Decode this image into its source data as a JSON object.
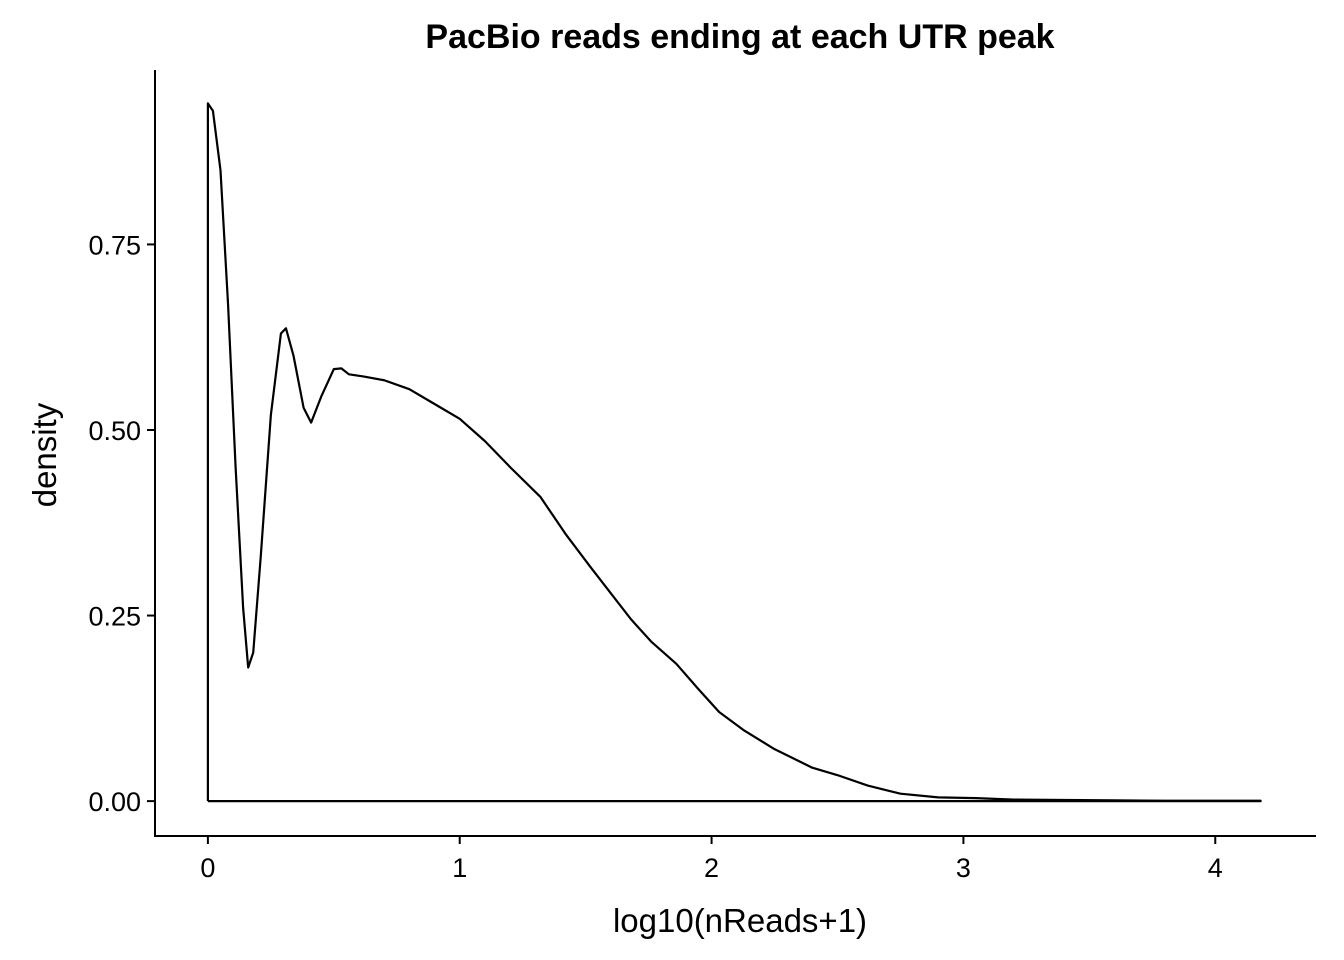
{
  "chart_data": {
    "type": "line",
    "title": "PacBio reads ending at each UTR peak",
    "xlabel": "log10(nReads+1)",
    "ylabel": "density",
    "xlim": [
      -0.21,
      4.4
    ],
    "ylim": [
      -0.047,
      0.985
    ],
    "x_ticks": [
      {
        "value": 0,
        "label": "0"
      },
      {
        "value": 1,
        "label": "1"
      },
      {
        "value": 2,
        "label": "2"
      },
      {
        "value": 3,
        "label": "3"
      },
      {
        "value": 4,
        "label": "4"
      }
    ],
    "y_ticks": [
      {
        "value": 0.0,
        "label": "0.00"
      },
      {
        "value": 0.25,
        "label": "0.25"
      },
      {
        "value": 0.5,
        "label": "0.50"
      },
      {
        "value": 0.75,
        "label": "0.75"
      }
    ],
    "grid": false,
    "legend": "none",
    "series": [
      {
        "style": "density-outline",
        "color": "#000000",
        "points": [
          [
            0.0,
            0.0
          ],
          [
            0.0,
            0.94
          ],
          [
            0.02,
            0.93
          ],
          [
            0.05,
            0.85
          ],
          [
            0.08,
            0.67
          ],
          [
            0.11,
            0.45
          ],
          [
            0.14,
            0.26
          ],
          [
            0.16,
            0.18
          ],
          [
            0.18,
            0.2
          ],
          [
            0.21,
            0.33
          ],
          [
            0.25,
            0.52
          ],
          [
            0.29,
            0.63
          ],
          [
            0.31,
            0.637
          ],
          [
            0.34,
            0.6
          ],
          [
            0.38,
            0.53
          ],
          [
            0.41,
            0.51
          ],
          [
            0.45,
            0.545
          ],
          [
            0.5,
            0.582
          ],
          [
            0.53,
            0.583
          ],
          [
            0.56,
            0.575
          ],
          [
            0.62,
            0.572
          ],
          [
            0.7,
            0.567
          ],
          [
            0.8,
            0.555
          ],
          [
            0.9,
            0.535
          ],
          [
            1.0,
            0.515
          ],
          [
            1.1,
            0.485
          ],
          [
            1.2,
            0.45
          ],
          [
            1.32,
            0.41
          ],
          [
            1.42,
            0.36
          ],
          [
            1.52,
            0.315
          ],
          [
            1.6,
            0.28
          ],
          [
            1.68,
            0.245
          ],
          [
            1.76,
            0.215
          ],
          [
            1.86,
            0.185
          ],
          [
            1.95,
            0.15
          ],
          [
            2.03,
            0.12
          ],
          [
            2.13,
            0.095
          ],
          [
            2.25,
            0.07
          ],
          [
            2.4,
            0.045
          ],
          [
            2.5,
            0.035
          ],
          [
            2.62,
            0.021
          ],
          [
            2.75,
            0.01
          ],
          [
            2.9,
            0.005
          ],
          [
            3.05,
            0.004
          ],
          [
            3.2,
            0.002
          ],
          [
            3.4,
            0.0015
          ],
          [
            3.6,
            0.001
          ],
          [
            3.8,
            0.0005
          ],
          [
            4.0,
            0.0005
          ],
          [
            4.18,
            0.0005
          ],
          [
            4.18,
            0.0
          ],
          [
            0.0,
            0.0
          ]
        ]
      }
    ]
  }
}
